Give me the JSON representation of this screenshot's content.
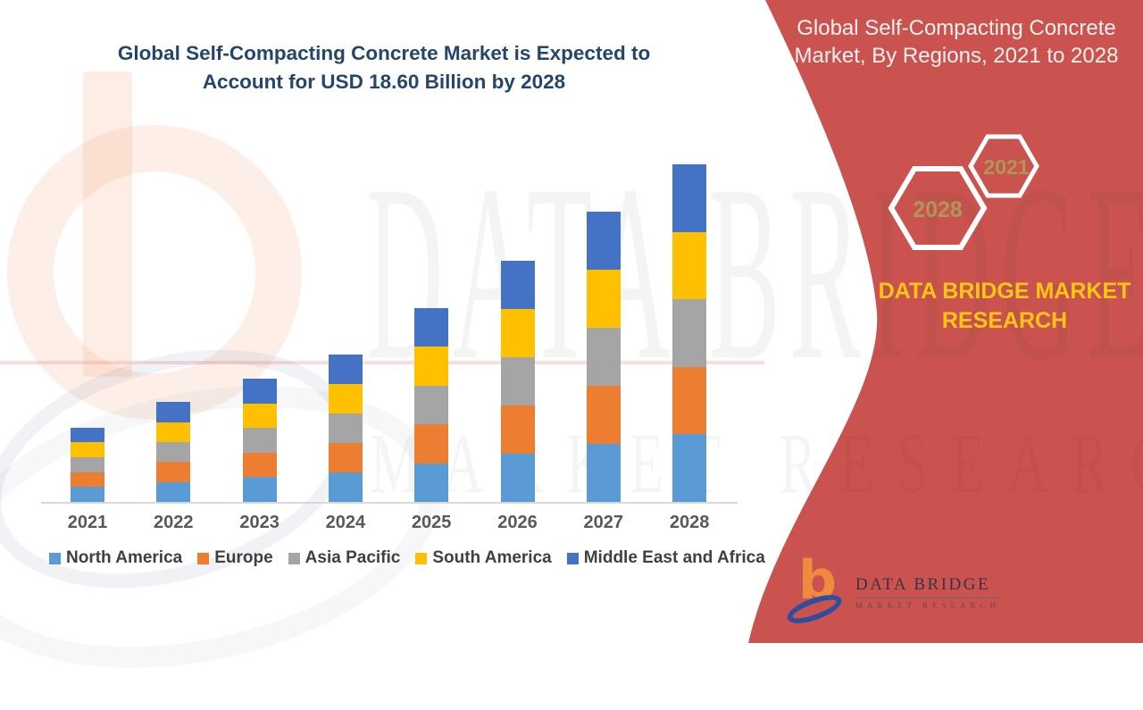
{
  "page": {
    "accent_red": "#CA534F",
    "accent_yellow": "#FFC613",
    "title_color": "#24466B"
  },
  "main_title": "Global Self-Compacting Concrete Market is Expected to Account for USD 18.60 Billion by 2028",
  "chart_data": {
    "type": "bar",
    "stacked": true,
    "unit": "USD Billion",
    "categories": [
      "2021",
      "2022",
      "2023",
      "2024",
      "2025",
      "2026",
      "2027",
      "2028"
    ],
    "series": [
      {
        "name": "North America",
        "color": "#5B9BD5",
        "values": [
          0.82,
          1.1,
          1.36,
          1.62,
          2.14,
          2.66,
          3.2,
          3.72
        ]
      },
      {
        "name": "Europe",
        "color": "#ED7D31",
        "values": [
          0.82,
          1.1,
          1.36,
          1.62,
          2.14,
          2.66,
          3.2,
          3.72
        ]
      },
      {
        "name": "Asia Pacific",
        "color": "#A5A5A5",
        "values": [
          0.82,
          1.1,
          1.36,
          1.62,
          2.14,
          2.66,
          3.2,
          3.72
        ]
      },
      {
        "name": "South America",
        "color": "#FFC000",
        "values": [
          0.82,
          1.1,
          1.36,
          1.62,
          2.14,
          2.66,
          3.2,
          3.72
        ]
      },
      {
        "name": "Middle East and Africa",
        "color": "#4472C4",
        "values": [
          0.82,
          1.1,
          1.36,
          1.62,
          2.14,
          2.66,
          3.2,
          3.72
        ]
      }
    ],
    "totals": [
      4.1,
      5.5,
      6.8,
      8.1,
      10.7,
      13.3,
      16.0,
      18.6
    ],
    "ylim": [
      0,
      18.6
    ],
    "xlabel": "",
    "ylabel": "",
    "gridlines": false,
    "legend_position": "bottom"
  },
  "right_panel": {
    "title": "Global Self-Compacting Concrete Market, By Regions, 2021 to 2028",
    "hexagon_small_label": "2021",
    "hexagon_large_label": "2028",
    "brand_text": "DATA BRIDGE MARKET RESEARCH"
  },
  "logo": {
    "glyph": "b",
    "name": "DATA BRIDGE",
    "subtitle": "MARKET RESEARCH"
  },
  "watermark": {
    "line1": "DATA BRIDGE",
    "line2": "MARKET RESEARCH"
  }
}
